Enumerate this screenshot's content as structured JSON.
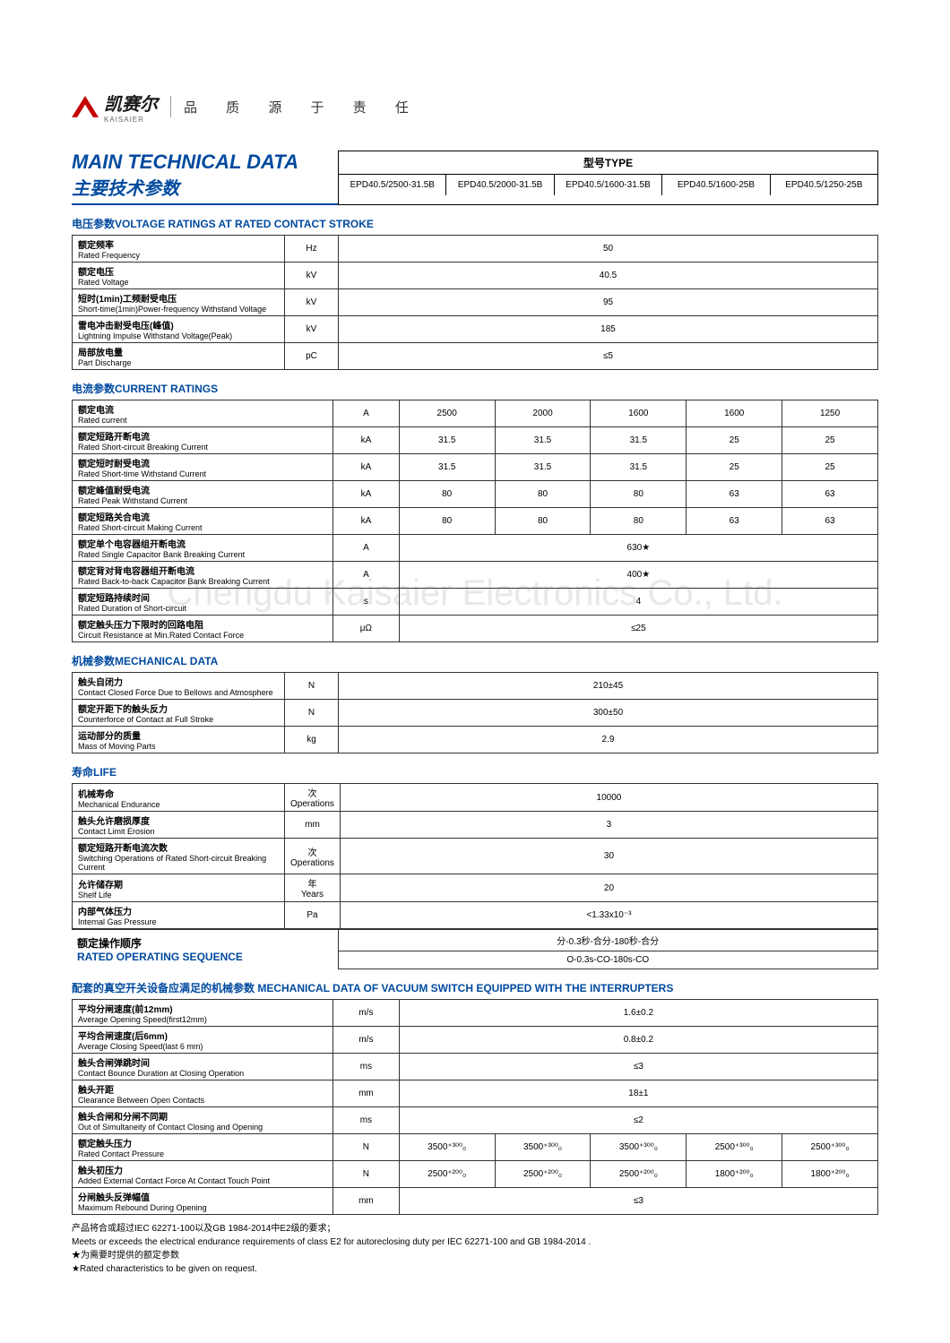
{
  "brand": {
    "cn": "凯赛尔",
    "en": "KAISAIER",
    "tagline": "品 质 源 于 责 任"
  },
  "watermark": "Chengdu Kaisaier Electronics Co., Ltd.",
  "main_title": {
    "en": "MAIN TECHNICAL DATA",
    "cn": "主要技术参数"
  },
  "type": {
    "header": "型号TYPE",
    "models": [
      "EPD40.5/2500-31.5B",
      "EPD40.5/2000-31.5B",
      "EPD40.5/1600-31.5B",
      "EPD40.5/1600-25B",
      "EPD40.5/1250-25B"
    ]
  },
  "sections": {
    "voltage": {
      "title": "电压参数VOLTAGE RATINGS AT RATED CONTACT STROKE",
      "rows": [
        {
          "cn": "额定频率",
          "en": "Rated Frequency",
          "unit": "Hz",
          "vals": [
            "50"
          ]
        },
        {
          "cn": "额定电压",
          "en": "Rated Voltage",
          "unit": "kV",
          "vals": [
            "40.5"
          ]
        },
        {
          "cn": "短时(1min)工频耐受电压",
          "en": "Short-time(1min)Power-frequency Withstand Voltage",
          "unit": "kV",
          "vals": [
            "95"
          ]
        },
        {
          "cn": "雷电冲击耐受电压(峰值)",
          "en": "Lightning Impulse Withstand Voltage(Peak)",
          "unit": "kV",
          "vals": [
            "185"
          ]
        },
        {
          "cn": "局部放电量",
          "en": "Part Discharge",
          "unit": "pC",
          "vals": [
            "≤5"
          ]
        }
      ]
    },
    "current": {
      "title": "电流参数CURRENT RATINGS",
      "rows": [
        {
          "cn": "额定电流",
          "en": "Rated current",
          "unit": "A",
          "vals": [
            "2500",
            "2000",
            "1600",
            "1600",
            "1250"
          ]
        },
        {
          "cn": "额定短路开断电流",
          "en": "Rated Short-circuit Breaking Current",
          "unit": "kA",
          "vals": [
            "31.5",
            "31.5",
            "31.5",
            "25",
            "25"
          ]
        },
        {
          "cn": "额定短时耐受电流",
          "en": "Rated Short-time Withstand Current",
          "unit": "kA",
          "vals": [
            "31.5",
            "31.5",
            "31.5",
            "25",
            "25"
          ]
        },
        {
          "cn": "额定峰值耐受电流",
          "en": "Rated Peak Withstand Current",
          "unit": "kA",
          "vals": [
            "80",
            "80",
            "80",
            "63",
            "63"
          ]
        },
        {
          "cn": "额定短路关合电流",
          "en": "Rated Short-circuit Making Current",
          "unit": "kA",
          "vals": [
            "80",
            "80",
            "80",
            "63",
            "63"
          ]
        },
        {
          "cn": "额定单个电容器组开断电流",
          "en": "Rated Single Capacitor Bank Breaking Current",
          "unit": "A",
          "vals": [
            "630★"
          ]
        },
        {
          "cn": "额定背对背电容器组开断电流",
          "en": "Rated Back-to-back Capacitor Bank Breaking Current",
          "unit": "A",
          "vals": [
            "400★"
          ]
        },
        {
          "cn": "额定短路持续时间",
          "en": "Rated Duration of Short-circuit",
          "unit": "s",
          "vals": [
            "4"
          ]
        },
        {
          "cn": "额定触头压力下限时的回路电阻",
          "en": "Circuit Resistance at Min.Rated Contact Force",
          "unit": "μΩ",
          "vals": [
            "≤25"
          ]
        }
      ]
    },
    "mechanical": {
      "title": "机械参数MECHANICAL DATA",
      "rows": [
        {
          "cn": "触头自闭力",
          "en": "Contact Closed Force Due to Bellows and Atmosphere",
          "unit": "N",
          "vals": [
            "210±45"
          ]
        },
        {
          "cn": "额定开距下的触头反力",
          "en": "Counterforce of Contact at Full Stroke",
          "unit": "N",
          "vals": [
            "300±50"
          ]
        },
        {
          "cn": "运动部分的质量",
          "en": "Mass of Moving Parts",
          "unit": "kg",
          "vals": [
            "2.9"
          ]
        }
      ]
    },
    "life": {
      "title": "寿命LIFE",
      "rows": [
        {
          "cn": "机械寿命",
          "en": "Mechanical Endurance",
          "unit": "次\nOperations",
          "vals": [
            "10000"
          ]
        },
        {
          "cn": "触头允许磨损厚度",
          "en": "Contact Limit Erosion",
          "unit": "mm",
          "vals": [
            "3"
          ]
        },
        {
          "cn": "额定短路开断电流次数",
          "en": "Switching Operations of Rated Short-circuit Breaking Current",
          "unit": "次\nOperations",
          "vals": [
            "30"
          ]
        },
        {
          "cn": "允许储存期",
          "en": "Shelf Life",
          "unit": "年\nYears",
          "vals": [
            "20"
          ]
        },
        {
          "cn": "内部气体压力",
          "en": "Internal Gas Pressure",
          "unit": "Pa",
          "vals": [
            "<1.33x10⁻³"
          ]
        }
      ]
    },
    "operating_seq": {
      "label_cn": "额定操作顺序",
      "label_en": "RATED OPERATING SEQUENCE",
      "vals": [
        "分-0.3秒-合分-180秒-合分",
        "O-0.3s-CO-180s-CO"
      ]
    },
    "switch": {
      "title": "配套的真空开关设备应满足的机械参数 MECHANICAL DATA OF VACUUM SWITCH EQUIPPED WITH THE INTERRUPTERS",
      "rows": [
        {
          "cn": "平均分闸速度(前12mm)",
          "en": "Average Opening Speed(first12mm)",
          "unit": "m/s",
          "vals": [
            "1.6±0.2"
          ]
        },
        {
          "cn": "平均合闸速度(后6mm)",
          "en": "Average Closing Speed(last 6 mm)",
          "unit": "m/s",
          "vals": [
            "0.8±0.2"
          ]
        },
        {
          "cn": "触头合闸弹跳时间",
          "en": "Contact Bounce Duration at Closing Operation",
          "unit": "ms",
          "vals": [
            "≤3"
          ]
        },
        {
          "cn": "触头开距",
          "en": "Clearance Between Open Contacts",
          "unit": "mm",
          "vals": [
            "18±1"
          ]
        },
        {
          "cn": "触头合闸和分闸不同期",
          "en": "Out of Simultaneity of Contact Closing and Opening",
          "unit": "ms",
          "vals": [
            "≤2"
          ]
        },
        {
          "cn": "额定触头压力",
          "en": "Rated Contact Pressure",
          "unit": "N",
          "vals": [
            "3500⁺³⁰⁰₀",
            "3500⁺³⁰⁰₀",
            "3500⁺³⁰⁰₀",
            "2500⁺³⁰⁰₀",
            "2500⁺³⁰⁰₀"
          ]
        },
        {
          "cn": "触头初压力",
          "en": "Added External Contact Force At Contact Touch Point",
          "unit": "N",
          "vals": [
            "2500⁺²⁰⁰₀",
            "2500⁺²⁰⁰₀",
            "2500⁺²⁰⁰₀",
            "1800⁺²⁰⁰₀",
            "1800⁺²⁰⁰₀"
          ]
        },
        {
          "cn": "分闸触头反弹幅值",
          "en": "Maximum Rebound During Opening",
          "unit": "mm",
          "vals": [
            "≤3"
          ]
        }
      ]
    }
  },
  "footnotes": [
    "产品将合或超过IEC 62271-100以及GB 1984-2014中E2级的要求；",
    "Meets or exceeds the electrical endurance requirements of class E2 for autoreclosing duty per IEC 62271-100 and GB 1984-2014 .",
    "★为需要时提供的额定参数",
    "★Rated characteristics to be given on request."
  ]
}
